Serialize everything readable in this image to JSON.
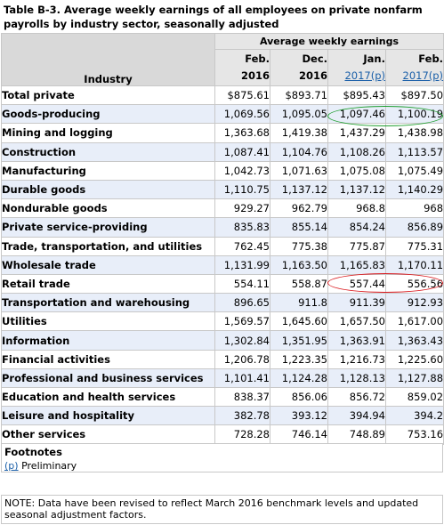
{
  "caption": "Table B-3. Average weekly earnings of all employees on private nonfarm payrolls by industry sector, seasonally adjusted",
  "header": {
    "industry": "Industry",
    "group": "Average weekly earnings",
    "columns": [
      {
        "line1": "Feb.",
        "line2": "2016",
        "link": false
      },
      {
        "line1": "Dec.",
        "line2": "2016",
        "link": false
      },
      {
        "line1": "Jan.",
        "line2": "2017(p)",
        "link": true
      },
      {
        "line1": "Feb.",
        "line2": "2017(p)",
        "link": true
      }
    ]
  },
  "rows": [
    {
      "label": "Total private",
      "values": [
        "$875.61",
        "$893.71",
        "$895.43",
        "$897.50"
      ]
    },
    {
      "label": "Goods-producing",
      "values": [
        "1,069.56",
        "1,095.05",
        "1,097.46",
        "1,100.19"
      ]
    },
    {
      "label": "Mining and logging",
      "values": [
        "1,363.68",
        "1,419.38",
        "1,437.29",
        "1,438.98"
      ]
    },
    {
      "label": "Construction",
      "values": [
        "1,087.41",
        "1,104.76",
        "1,108.26",
        "1,113.57"
      ]
    },
    {
      "label": "Manufacturing",
      "values": [
        "1,042.73",
        "1,071.63",
        "1,075.08",
        "1,075.49"
      ]
    },
    {
      "label": "Durable goods",
      "values": [
        "1,110.75",
        "1,137.12",
        "1,137.12",
        "1,140.29"
      ]
    },
    {
      "label": "Nondurable goods",
      "values": [
        "929.27",
        "962.79",
        "968.8",
        "968"
      ]
    },
    {
      "label": "Private service-providing",
      "values": [
        "835.83",
        "855.14",
        "854.24",
        "856.89"
      ]
    },
    {
      "label": "Trade, transportation, and utilities",
      "values": [
        "762.45",
        "775.38",
        "775.87",
        "775.31"
      ]
    },
    {
      "label": "Wholesale trade",
      "values": [
        "1,131.99",
        "1,163.50",
        "1,165.83",
        "1,170.11"
      ]
    },
    {
      "label": "Retail trade",
      "values": [
        "554.11",
        "558.87",
        "557.44",
        "556.56"
      ]
    },
    {
      "label": "Transportation and warehousing",
      "values": [
        "896.65",
        "911.8",
        "911.39",
        "912.93"
      ]
    },
    {
      "label": "Utilities",
      "values": [
        "1,569.57",
        "1,645.60",
        "1,657.50",
        "1,617.00"
      ]
    },
    {
      "label": "Information",
      "values": [
        "1,302.84",
        "1,351.95",
        "1,363.91",
        "1,363.43"
      ]
    },
    {
      "label": "Financial activities",
      "values": [
        "1,206.78",
        "1,223.35",
        "1,216.73",
        "1,225.60"
      ]
    },
    {
      "label": "Professional and business services",
      "values": [
        "1,101.41",
        "1,124.28",
        "1,128.13",
        "1,127.88"
      ]
    },
    {
      "label": "Education and health services",
      "values": [
        "838.37",
        "856.06",
        "856.72",
        "859.02"
      ]
    },
    {
      "label": "Leisure and hospitality",
      "values": [
        "382.78",
        "393.12",
        "394.94",
        "394.2"
      ]
    },
    {
      "label": "Other services",
      "values": [
        "728.28",
        "746.14",
        "748.89",
        "753.16"
      ]
    }
  ],
  "footnotes": {
    "title": "Footnotes",
    "marker": "(p)",
    "text": "Preliminary"
  },
  "note": "NOTE: Data have been revised to reflect March 2016 benchmark levels and updated seasonal adjustment factors.",
  "colors": {
    "highlight_green": "#1e9e2e",
    "highlight_red": "#d9191e",
    "link": "#1a5fa8"
  }
}
